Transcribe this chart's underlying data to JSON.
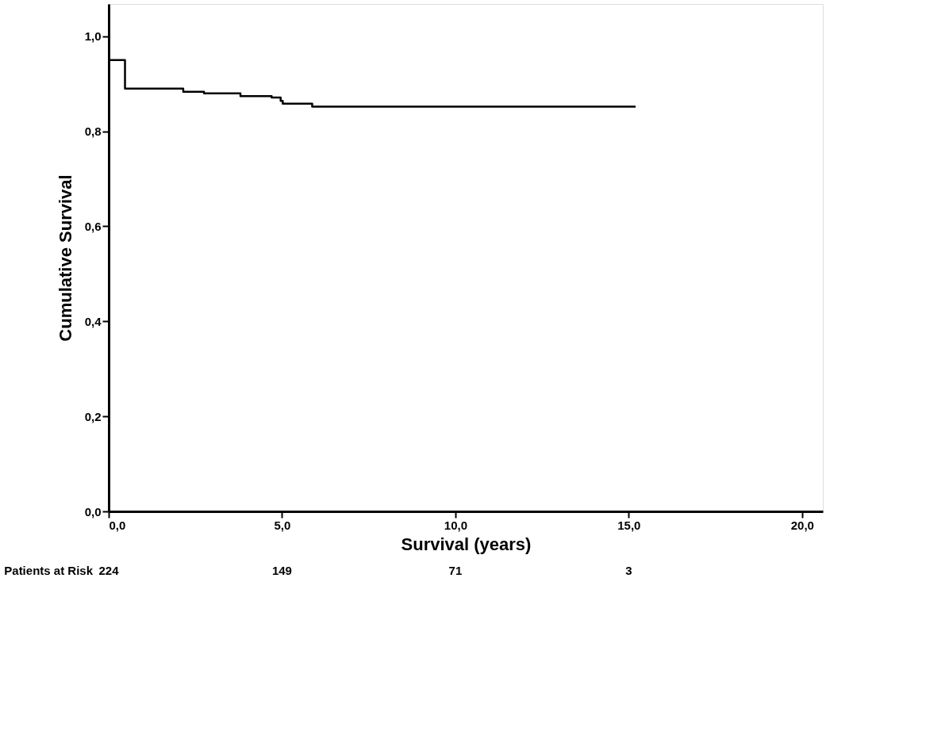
{
  "chart_data": {
    "type": "step",
    "xlabel": "Survival (years)",
    "ylabel": "Cumulative Survival",
    "x": [
      0,
      0.47,
      2.15,
      2.75,
      3.8,
      4.7,
      4.96,
      5.02,
      5.87,
      15.2
    ],
    "series": [
      {
        "color": "#000000",
        "values": [
          0.95,
          0.89,
          0.883,
          0.88,
          0.874,
          0.871,
          0.864,
          0.858,
          0.852,
          0.852
        ]
      }
    ],
    "xlim": [
      0,
      20.6
    ],
    "ylim": [
      0,
      1.068
    ],
    "xticks": [
      {
        "value": 0,
        "label": "0,0"
      },
      {
        "value": 5,
        "label": "5,0"
      },
      {
        "value": 10,
        "label": "10,0"
      },
      {
        "value": 15,
        "label": "15,0"
      },
      {
        "value": 20,
        "label": "20,0"
      }
    ],
    "yticks": [
      {
        "value": 0,
        "label": "0,0"
      },
      {
        "value": 0.2,
        "label": "0,2"
      },
      {
        "value": 0.4,
        "label": "0,4"
      },
      {
        "value": 0.6,
        "label": "0,6"
      },
      {
        "value": 0.8,
        "label": "0,8"
      },
      {
        "value": 1.0,
        "label": "1,0"
      }
    ],
    "grid": false,
    "marker": "none",
    "line_style": "solid",
    "annotations": [
      "Patients at Risk",
      "224",
      "149",
      "71",
      "3"
    ]
  }
}
